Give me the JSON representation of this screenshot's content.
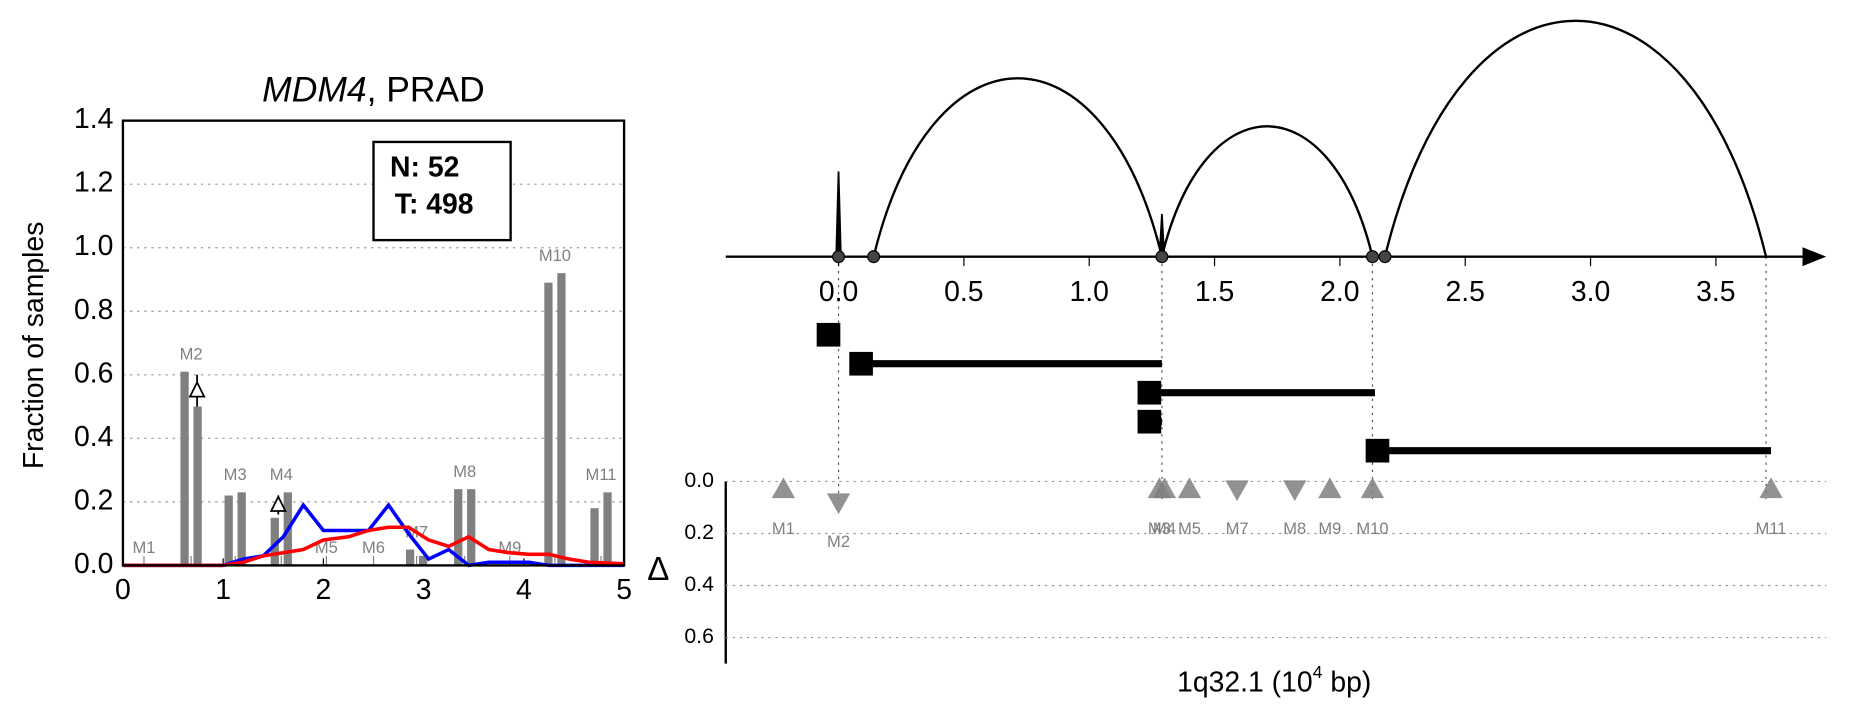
{
  "chart_data": [
    {
      "type": "bar",
      "title": [
        "MDM4",
        ", PRAD"
      ],
      "ylabel": "Fraction of samples",
      "annotation": [
        "N: 52",
        "T: 498"
      ],
      "xlim": [
        0,
        5
      ],
      "xticks": [
        0,
        1,
        2,
        3,
        4,
        5
      ],
      "ylim": [
        0,
        1.4
      ],
      "yticks": [
        {
          "value": 0,
          "label": "0.0"
        },
        {
          "value": 0.2,
          "label": "0.2"
        },
        {
          "value": 0.4,
          "label": "0.4"
        },
        {
          "value": 0.6,
          "label": "0.6"
        },
        {
          "value": 0.8,
          "label": "0.8"
        },
        {
          "value": 1.0,
          "label": "1.0"
        },
        {
          "value": 1.2,
          "label": "1.2"
        },
        {
          "value": 1.4,
          "label": "1.4"
        }
      ],
      "grid": true,
      "bar_color": "#808080",
      "groups": [
        {
          "name": "M1",
          "x": 0.21,
          "values": [
            0,
            0
          ]
        },
        {
          "name": "M2",
          "x": 0.68,
          "values": [
            0.61,
            0.5
          ]
        },
        {
          "name": "M3",
          "x": 1.12,
          "values": [
            0.22,
            0.23
          ]
        },
        {
          "name": "M4",
          "x": 1.58,
          "values": [
            0.15,
            0.23
          ]
        },
        {
          "name": "M5",
          "x": 2.03,
          "values": [
            0,
            0
          ]
        },
        {
          "name": "M6",
          "x": 2.5,
          "values": [
            0,
            0
          ]
        },
        {
          "name": "M7",
          "x": 2.93,
          "values": [
            0.05,
            0.03
          ]
        },
        {
          "name": "M8",
          "x": 3.41,
          "values": [
            0.24,
            0.24
          ]
        },
        {
          "name": "M9",
          "x": 3.86,
          "values": [
            0,
            0
          ]
        },
        {
          "name": "M10",
          "x": 4.31,
          "values": [
            0.89,
            0.92
          ]
        },
        {
          "name": "M11",
          "x": 4.77,
          "values": [
            0.18,
            0.23
          ]
        }
      ],
      "deltas": [
        {
          "x": 0.74,
          "y": 0.55,
          "err": 0.05
        },
        {
          "x": 1.55,
          "y": 0.19,
          "err": 0.03
        }
      ],
      "line_x": [
        0,
        1.0,
        1.2,
        1.4,
        1.6,
        1.8,
        2.0,
        2.25,
        2.45,
        2.65,
        2.85,
        3.05,
        3.25,
        3.45,
        3.65,
        3.85,
        4.05,
        4.25,
        4.45,
        4.65,
        5.0
      ],
      "series": [
        {
          "color": "#0000ff",
          "values": [
            0,
            0,
            0.02,
            0.03,
            0.09,
            0.19,
            0.11,
            0.11,
            0.11,
            0.19,
            0.1,
            0.02,
            0.05,
            0.0,
            0.01,
            0.01,
            0.01,
            0.0,
            0.0,
            0.0,
            0.0
          ]
        },
        {
          "color": "#ff0000",
          "values": [
            0,
            0,
            0.01,
            0.03,
            0.04,
            0.05,
            0.08,
            0.09,
            0.11,
            0.12,
            0.12,
            0.08,
            0.06,
            0.09,
            0.05,
            0.04,
            0.035,
            0.035,
            0.02,
            0.01,
            0.005
          ]
        }
      ]
    },
    {
      "type": "gene_structure",
      "xlabel": [
        "1q32.1 (10",
        "4",
        " bp)"
      ],
      "ylabel": "Δ",
      "xlim": [
        -0.45,
        3.94
      ],
      "xticks": [
        {
          "value": 0,
          "label": "0.0"
        },
        {
          "value": 0.5,
          "label": "0.5"
        },
        {
          "value": 1.0,
          "label": "1.0"
        },
        {
          "value": 1.5,
          "label": "1.5"
        },
        {
          "value": 2.0,
          "label": "2.0"
        },
        {
          "value": 2.5,
          "label": "2.5"
        },
        {
          "value": 3.0,
          "label": "3.0"
        },
        {
          "value": 3.5,
          "label": "3.5"
        }
      ],
      "ylim": [
        0,
        0.7
      ],
      "yticks": [
        {
          "value": 0,
          "label": "0.0"
        },
        {
          "value": 0.2,
          "label": "0.2"
        },
        {
          "value": 0.4,
          "label": "0.4"
        },
        {
          "value": 0.6,
          "label": "0.6"
        }
      ],
      "arcs": [
        {
          "start": 0.14,
          "end": 1.29
        },
        {
          "start": 1.29,
          "end": 2.13
        },
        {
          "start": 2.18,
          "end": 3.7
        }
      ],
      "spikes": [
        {
          "x": 0,
          "h": 0.34
        },
        {
          "x": 1.29,
          "h": 0.17
        }
      ],
      "sites": [
        0,
        0.14,
        1.29,
        2.13,
        2.18
      ],
      "guides": [
        0,
        1.29,
        2.13,
        3.7
      ],
      "transcripts": [
        {
          "start": -0.04,
          "end": 0.0
        },
        {
          "start": 0.09,
          "end": 1.29
        },
        {
          "start": 1.24,
          "end": 2.14
        },
        {
          "start": 1.24,
          "end": 1.29
        },
        {
          "start": 2.15,
          "end": 3.72
        }
      ],
      "marker_color": "#808080",
      "mutations": [
        {
          "name": "M1",
          "x": -0.22,
          "delta": 0.03,
          "dir": "up"
        },
        {
          "name": "M2",
          "x": 0.0,
          "delta": 0.08,
          "dir": "down"
        },
        {
          "name": "M3",
          "x": 1.28,
          "delta": 0.03,
          "dir": "up"
        },
        {
          "name": "M4",
          "x": 1.3,
          "delta": 0.03,
          "dir": "up"
        },
        {
          "name": "M5",
          "x": 1.4,
          "delta": 0.03,
          "dir": "up"
        },
        {
          "name": "M7",
          "x": 1.59,
          "delta": 0.03,
          "dir": "down"
        },
        {
          "name": "M8",
          "x": 1.82,
          "delta": 0.03,
          "dir": "down"
        },
        {
          "name": "M9",
          "x": 1.96,
          "delta": 0.03,
          "dir": "up"
        },
        {
          "name": "M10",
          "x": 2.13,
          "delta": 0.03,
          "dir": "up"
        },
        {
          "name": "M11",
          "x": 3.72,
          "delta": 0.03,
          "dir": "up"
        }
      ]
    }
  ]
}
